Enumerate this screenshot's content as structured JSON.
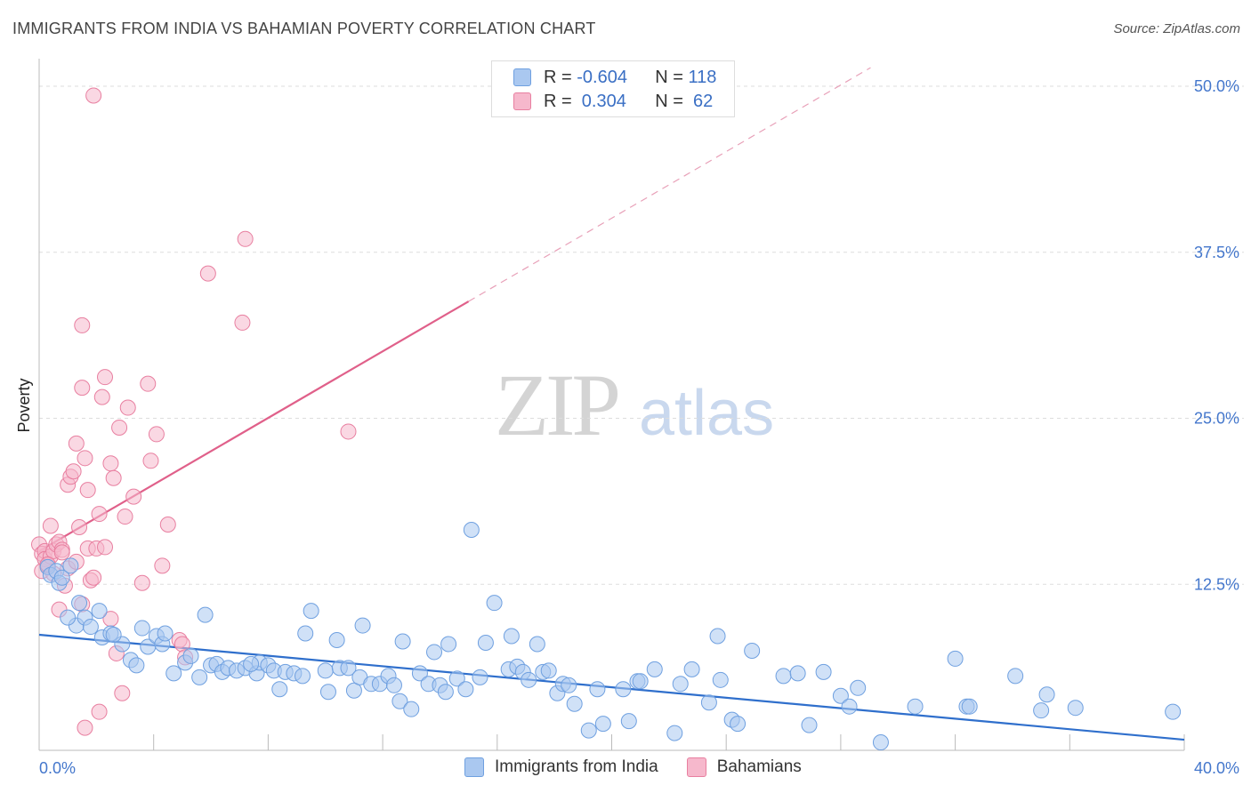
{
  "header": {
    "title": "IMMIGRANTS FROM INDIA VS BAHAMIAN POVERTY CORRELATION CHART",
    "source": "Source: ZipAtlas.com"
  },
  "watermark": {
    "zip": "ZIP",
    "atlas": "atlas"
  },
  "legend": {
    "rows": [
      {
        "r_label": "R = ",
        "r_value": "-0.604",
        "n_label": "N = ",
        "n_value": "118",
        "color": "#aac8f0"
      },
      {
        "r_label": "R = ",
        "r_value": " 0.304",
        "n_label": "N = ",
        "n_value": " 62",
        "color": "#f6b8cc"
      }
    ]
  },
  "bottom_legend": [
    {
      "label": "Immigrants from India",
      "color": "#aac8f0"
    },
    {
      "label": "Bahamians",
      "color": "#f6b8cc"
    }
  ],
  "chart_data": {
    "type": "scatter",
    "xlabel": "",
    "ylabel": "Poverty",
    "xlim": [
      0,
      40
    ],
    "ylim": [
      0,
      50
    ],
    "x_tick_labels": [
      "0.0%",
      "40.0%"
    ],
    "y_ticks": [
      12.5,
      25.0,
      37.5,
      50.0
    ],
    "y_tick_labels": [
      "12.5%",
      "25.0%",
      "37.5%",
      "50.0%"
    ],
    "grid": true,
    "legend_position": "top-center",
    "series": [
      {
        "name": "Immigrants from India",
        "color": "#6fa0e0",
        "fill": "#aac8f0",
        "trend": {
          "x": [
            0,
            40
          ],
          "y": [
            8.7,
            0.8
          ],
          "extrapolate_to": 40,
          "style": "solid"
        },
        "points": [
          [
            0.3,
            13.8
          ],
          [
            0.4,
            13.2
          ],
          [
            0.6,
            13.5
          ],
          [
            0.7,
            12.6
          ],
          [
            0.8,
            13.0
          ],
          [
            1.1,
            13.9
          ],
          [
            1.3,
            9.4
          ],
          [
            1.4,
            11.1
          ],
          [
            1.6,
            10.0
          ],
          [
            1.8,
            9.3
          ],
          [
            2.1,
            10.5
          ],
          [
            2.2,
            8.5
          ],
          [
            2.5,
            8.8
          ],
          [
            2.9,
            8.0
          ],
          [
            3.2,
            6.8
          ],
          [
            3.4,
            6.4
          ],
          [
            3.6,
            9.2
          ],
          [
            3.8,
            7.8
          ],
          [
            4.1,
            8.6
          ],
          [
            4.3,
            8.0
          ],
          [
            4.4,
            8.8
          ],
          [
            4.7,
            5.8
          ],
          [
            5.1,
            6.6
          ],
          [
            5.3,
            7.1
          ],
          [
            5.6,
            5.5
          ],
          [
            5.8,
            10.2
          ],
          [
            6.0,
            6.4
          ],
          [
            6.2,
            6.5
          ],
          [
            6.4,
            5.9
          ],
          [
            6.6,
            6.2
          ],
          [
            6.9,
            6.0
          ],
          [
            7.2,
            6.2
          ],
          [
            7.6,
            5.8
          ],
          [
            7.7,
            6.6
          ],
          [
            8.0,
            6.4
          ],
          [
            8.2,
            6.0
          ],
          [
            8.4,
            4.6
          ],
          [
            8.6,
            5.9
          ],
          [
            8.9,
            5.8
          ],
          [
            9.2,
            5.6
          ],
          [
            9.3,
            8.8
          ],
          [
            9.5,
            10.5
          ],
          [
            10.0,
            6.0
          ],
          [
            10.1,
            4.4
          ],
          [
            10.4,
            8.3
          ],
          [
            10.5,
            6.2
          ],
          [
            10.8,
            6.2
          ],
          [
            11.0,
            4.5
          ],
          [
            11.2,
            5.5
          ],
          [
            11.3,
            9.4
          ],
          [
            11.6,
            5.0
          ],
          [
            11.9,
            5.0
          ],
          [
            12.2,
            5.6
          ],
          [
            12.4,
            4.9
          ],
          [
            12.6,
            3.7
          ],
          [
            12.7,
            8.2
          ],
          [
            13.0,
            3.1
          ],
          [
            13.3,
            5.8
          ],
          [
            13.6,
            5.0
          ],
          [
            13.8,
            7.4
          ],
          [
            14.0,
            4.9
          ],
          [
            14.2,
            4.4
          ],
          [
            14.3,
            8.0
          ],
          [
            14.6,
            5.4
          ],
          [
            14.9,
            4.6
          ],
          [
            15.1,
            16.6
          ],
          [
            15.4,
            5.5
          ],
          [
            15.6,
            8.1
          ],
          [
            15.9,
            11.1
          ],
          [
            16.4,
            6.1
          ],
          [
            16.5,
            8.6
          ],
          [
            16.7,
            6.3
          ],
          [
            16.9,
            5.9
          ],
          [
            17.1,
            5.3
          ],
          [
            17.4,
            8.0
          ],
          [
            17.6,
            5.9
          ],
          [
            17.8,
            6.0
          ],
          [
            18.1,
            4.3
          ],
          [
            18.3,
            5.0
          ],
          [
            18.5,
            4.9
          ],
          [
            18.7,
            3.5
          ],
          [
            19.2,
            1.5
          ],
          [
            19.5,
            4.6
          ],
          [
            19.7,
            2.0
          ],
          [
            20.4,
            4.6
          ],
          [
            20.6,
            2.2
          ],
          [
            20.9,
            5.2
          ],
          [
            21.0,
            5.2
          ],
          [
            21.5,
            6.1
          ],
          [
            22.2,
            1.3
          ],
          [
            22.4,
            5.0
          ],
          [
            22.8,
            6.1
          ],
          [
            23.4,
            3.6
          ],
          [
            23.7,
            8.6
          ],
          [
            23.8,
            5.3
          ],
          [
            24.2,
            2.3
          ],
          [
            24.4,
            2.0
          ],
          [
            24.9,
            7.5
          ],
          [
            26.0,
            5.6
          ],
          [
            26.5,
            5.8
          ],
          [
            26.9,
            1.9
          ],
          [
            27.4,
            5.9
          ],
          [
            28.0,
            4.1
          ],
          [
            28.3,
            3.3
          ],
          [
            28.6,
            4.7
          ],
          [
            29.4,
            0.6
          ],
          [
            30.6,
            3.3
          ],
          [
            32.0,
            6.9
          ],
          [
            32.4,
            3.3
          ],
          [
            32.5,
            3.3
          ],
          [
            34.1,
            5.6
          ],
          [
            35.0,
            3.0
          ],
          [
            35.2,
            4.2
          ],
          [
            36.2,
            3.2
          ],
          [
            39.6,
            2.9
          ],
          [
            1.0,
            10.0
          ],
          [
            2.6,
            8.7
          ],
          [
            7.4,
            6.5
          ]
        ]
      },
      {
        "name": "Bahamians",
        "color": "#e87fa0",
        "fill": "#f6b8cc",
        "trend": {
          "x": [
            0,
            15
          ],
          "y": [
            15.0,
            33.8
          ],
          "extrapolate_to": 40,
          "style": "solid-then-dashed"
        },
        "points": [
          [
            0.0,
            15.5
          ],
          [
            0.1,
            14.8
          ],
          [
            0.1,
            13.5
          ],
          [
            0.2,
            15.0
          ],
          [
            0.2,
            14.4
          ],
          [
            0.3,
            13.9
          ],
          [
            0.4,
            16.9
          ],
          [
            0.4,
            14.6
          ],
          [
            0.5,
            15.0
          ],
          [
            0.5,
            13.3
          ],
          [
            0.6,
            15.5
          ],
          [
            0.7,
            15.7
          ],
          [
            0.7,
            10.6
          ],
          [
            0.8,
            15.1
          ],
          [
            0.8,
            14.9
          ],
          [
            0.9,
            12.4
          ],
          [
            1.0,
            13.7
          ],
          [
            1.0,
            20.0
          ],
          [
            1.1,
            20.6
          ],
          [
            1.2,
            21.0
          ],
          [
            1.3,
            23.1
          ],
          [
            1.3,
            14.2
          ],
          [
            1.4,
            16.8
          ],
          [
            1.5,
            27.3
          ],
          [
            1.5,
            32.0
          ],
          [
            1.5,
            11.0
          ],
          [
            1.6,
            22.0
          ],
          [
            1.7,
            15.2
          ],
          [
            1.7,
            19.6
          ],
          [
            1.8,
            12.8
          ],
          [
            1.9,
            13.0
          ],
          [
            2.0,
            15.2
          ],
          [
            2.1,
            17.8
          ],
          [
            2.2,
            26.6
          ],
          [
            2.3,
            28.1
          ],
          [
            2.3,
            15.3
          ],
          [
            2.5,
            21.6
          ],
          [
            2.5,
            9.9
          ],
          [
            2.6,
            20.5
          ],
          [
            2.7,
            7.3
          ],
          [
            2.8,
            24.3
          ],
          [
            2.9,
            4.3
          ],
          [
            3.0,
            17.6
          ],
          [
            3.1,
            25.8
          ],
          [
            3.3,
            19.1
          ],
          [
            3.6,
            12.6
          ],
          [
            3.8,
            27.6
          ],
          [
            3.9,
            21.8
          ],
          [
            4.1,
            23.8
          ],
          [
            4.3,
            13.9
          ],
          [
            4.5,
            17.0
          ],
          [
            4.9,
            8.3
          ],
          [
            5.0,
            8.0
          ],
          [
            5.1,
            7.0
          ],
          [
            5.9,
            35.9
          ],
          [
            7.1,
            32.2
          ],
          [
            7.2,
            38.5
          ],
          [
            10.8,
            24.0
          ],
          [
            1.9,
            49.3
          ],
          [
            2.1,
            2.9
          ],
          [
            1.6,
            1.7
          ],
          [
            0.3,
            14.0
          ]
        ]
      }
    ]
  }
}
